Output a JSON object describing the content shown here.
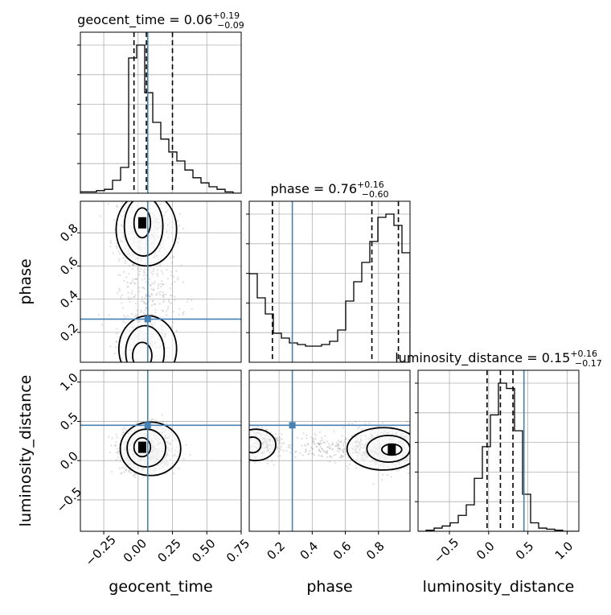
{
  "chart_data": {
    "type": "corner",
    "parameters": [
      "geocent_time",
      "phase",
      "luminosity_distance"
    ],
    "titles": {
      "geocent_time": {
        "name": "geocent_time",
        "median": "0.06",
        "plus": "+0.19",
        "minus": "−0.09"
      },
      "phase": {
        "name": "phase",
        "median": "0.76",
        "plus": "+0.16",
        "minus": "−0.60"
      },
      "luminosity_distance": {
        "name": "luminosity_distance",
        "median": "0.15",
        "plus": "+0.16",
        "minus": "−0.17"
      }
    },
    "truths": {
      "geocent_time": 0.07,
      "phase": 0.28,
      "luminosity_distance": 0.45
    },
    "quantiles": {
      "geocent_time": [
        -0.03,
        0.06,
        0.25
      ],
      "phase": [
        0.16,
        0.76,
        0.92
      ],
      "luminosity_distance": [
        -0.02,
        0.15,
        0.31
      ]
    },
    "ranges": {
      "geocent_time": [
        -0.42,
        0.75
      ],
      "phase": [
        0.02,
        0.99
      ],
      "luminosity_distance": [
        -0.9,
        1.15
      ]
    },
    "ticks": {
      "geocent_time": [
        "−0.25",
        "0.00",
        "0.25",
        "0.50",
        "0.75"
      ],
      "phase": [
        "0.2",
        "0.4",
        "0.6",
        "0.8"
      ],
      "luminosity_distance": [
        "−0.5",
        "0.0",
        "0.5",
        "1.0"
      ]
    },
    "tick_values": {
      "geocent_time": [
        -0.25,
        0.0,
        0.25,
        0.5,
        0.75
      ],
      "phase": [
        0.2,
        0.4,
        0.6,
        0.8
      ],
      "luminosity_distance": [
        -0.5,
        0.0,
        0.5,
        1.0
      ]
    },
    "histograms": {
      "geocent_time": {
        "edges": [
          -0.42,
          -0.3615,
          -0.303,
          -0.2445,
          -0.186,
          -0.1275,
          -0.069,
          -0.0105,
          0.048,
          0.1065,
          0.165,
          0.2235,
          0.282,
          0.3405,
          0.399,
          0.4575,
          0.516,
          0.5745,
          0.633,
          0.6915,
          0.75
        ],
        "counts": [
          1,
          1,
          2,
          3,
          10,
          20,
          105,
          115,
          78,
          55,
          42,
          32,
          25,
          18,
          12,
          8,
          5,
          3,
          1,
          0
        ]
      },
      "phase": {
        "edges": [
          0.02,
          0.0685,
          0.117,
          0.1655,
          0.214,
          0.2625,
          0.311,
          0.3595,
          0.408,
          0.4565,
          0.505,
          0.5535,
          0.602,
          0.6505,
          0.699,
          0.7475,
          0.796,
          0.8445,
          0.893,
          0.9415,
          0.99
        ],
        "counts": [
          55,
          40,
          30,
          18,
          15,
          12,
          11,
          10,
          10,
          11,
          13,
          20,
          38,
          50,
          62,
          75,
          90,
          92,
          85,
          68
        ]
      },
      "luminosity_distance": {
        "edges": [
          -0.9,
          -0.7975,
          -0.695,
          -0.5925,
          -0.49,
          -0.3875,
          -0.285,
          -0.1825,
          -0.08,
          0.0225,
          0.125,
          0.2275,
          0.33,
          0.4325,
          0.535,
          0.6375,
          0.74,
          0.8425,
          0.945,
          1.0475,
          1.15
        ],
        "counts": [
          0,
          1,
          3,
          5,
          8,
          15,
          25,
          50,
          80,
          110,
          140,
          135,
          95,
          35,
          8,
          3,
          2,
          1,
          0,
          0
        ]
      }
    },
    "grid": true
  }
}
